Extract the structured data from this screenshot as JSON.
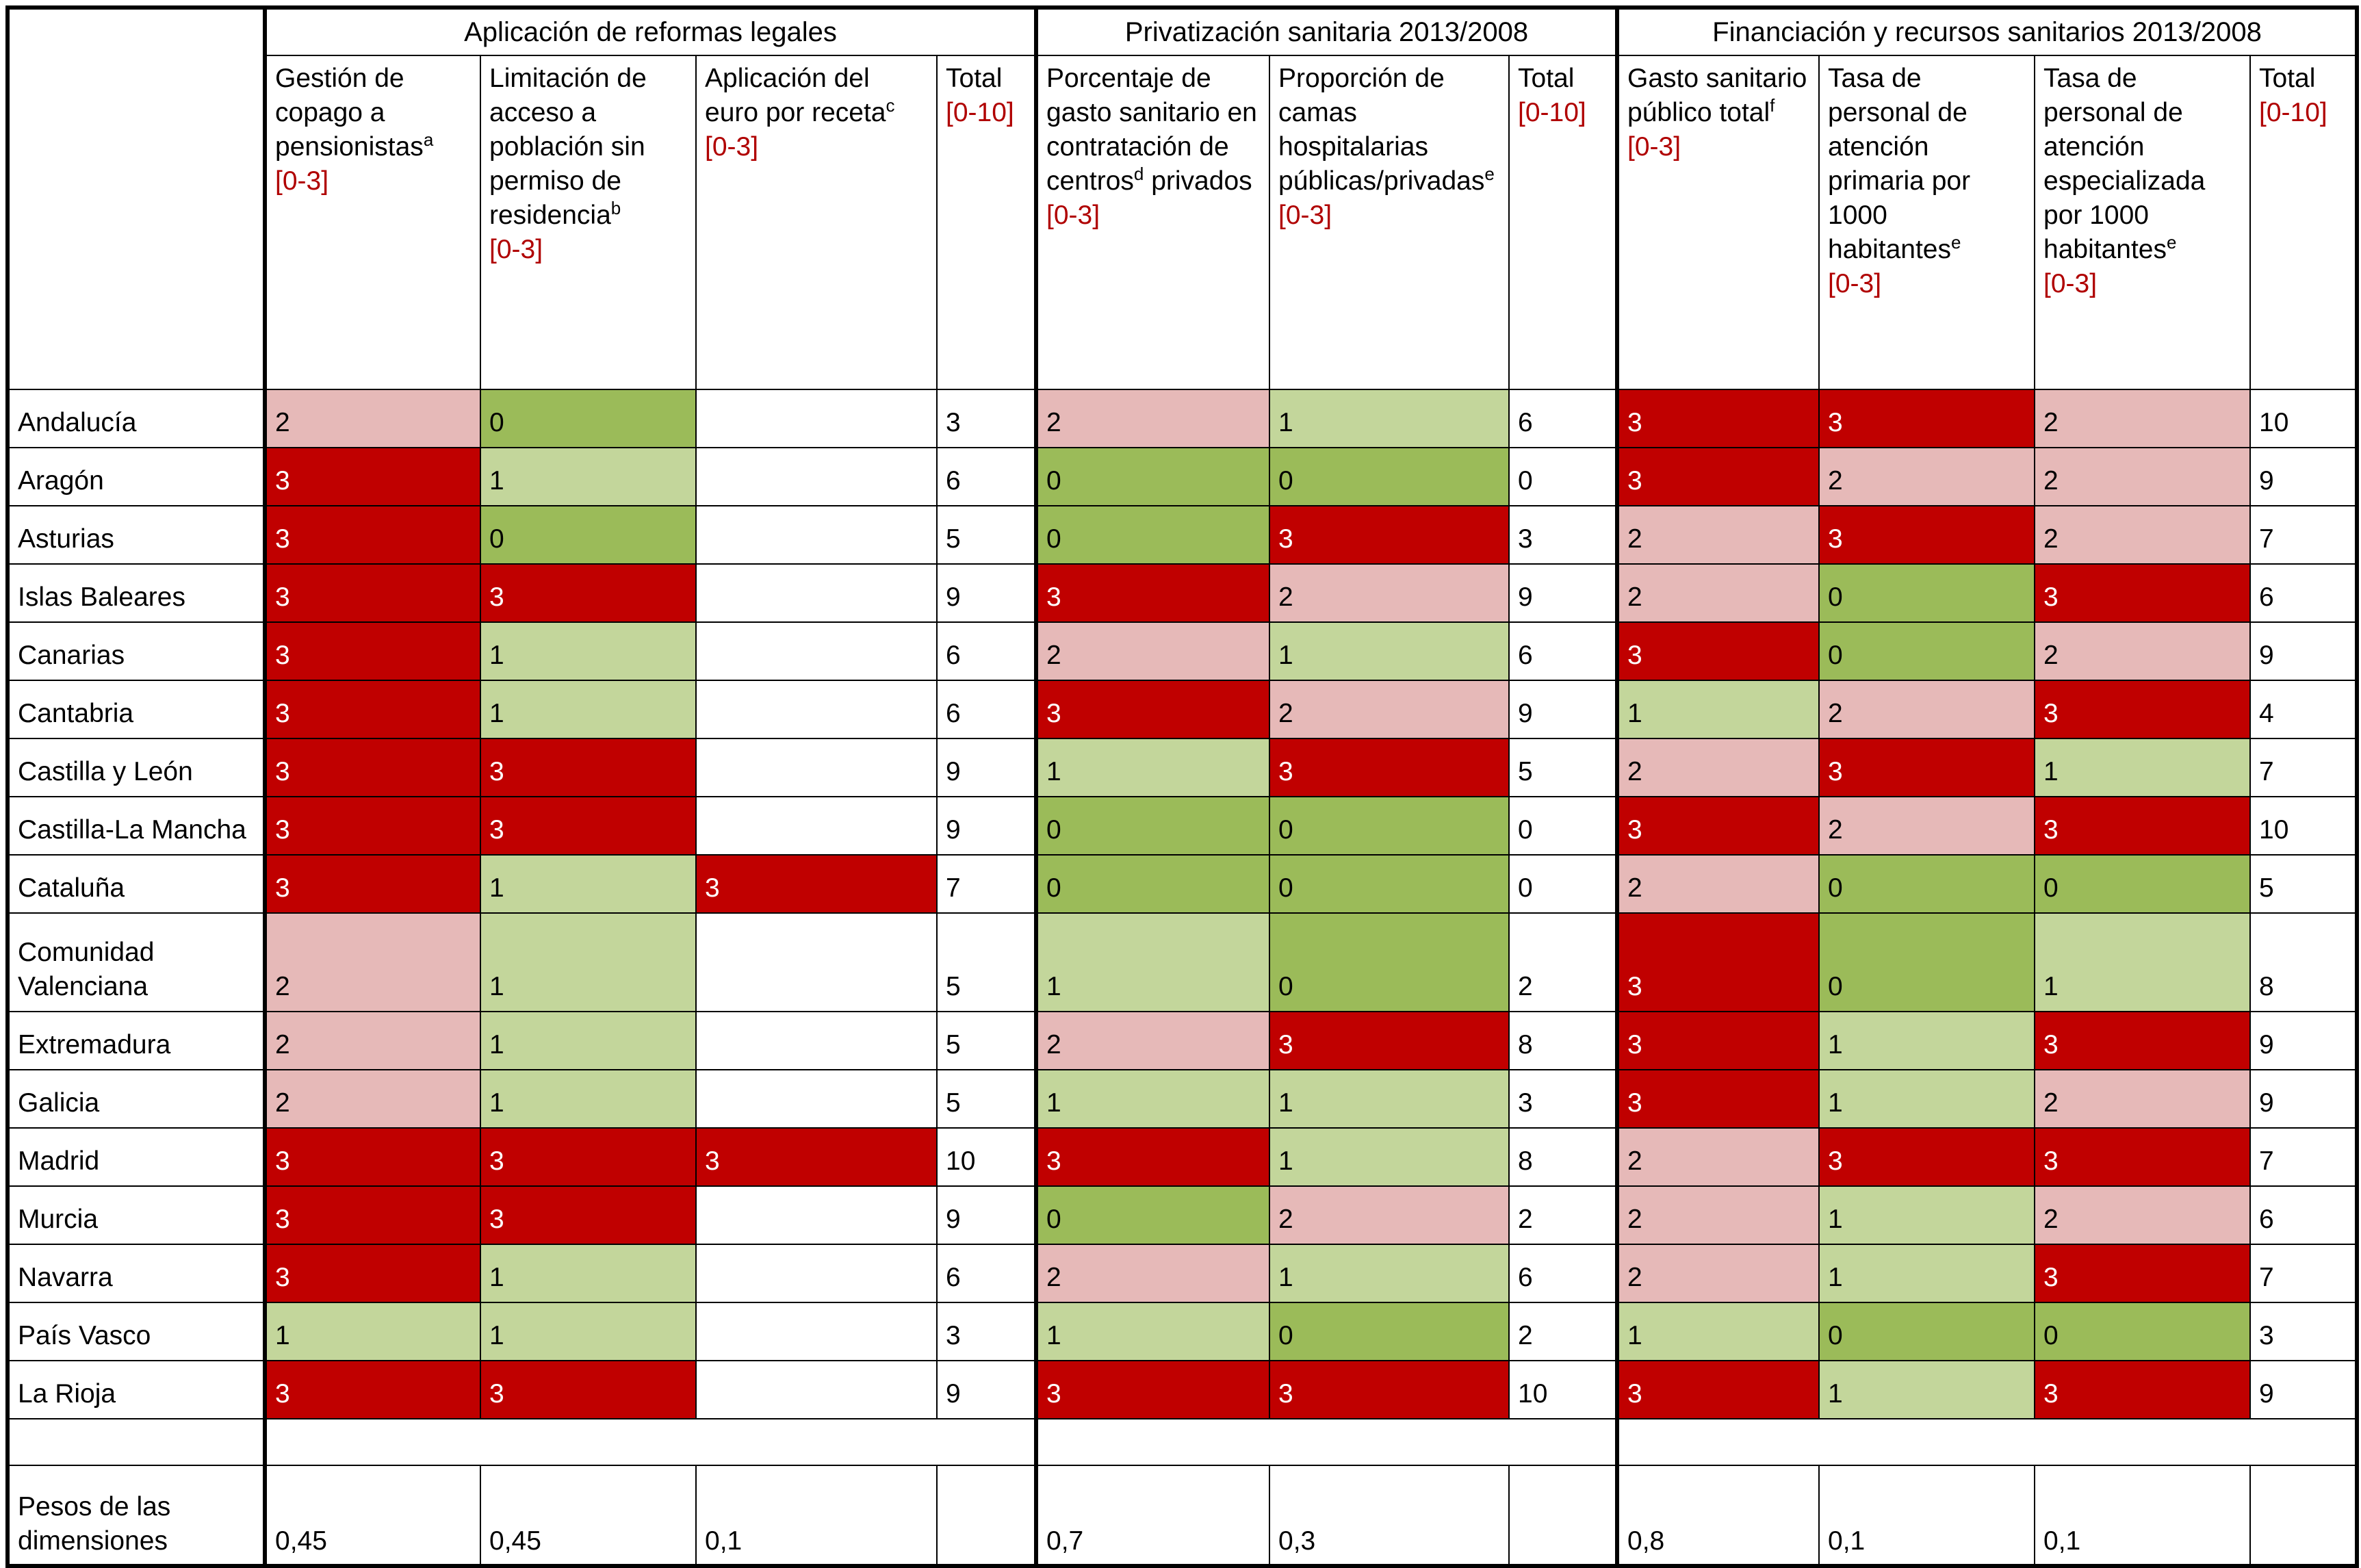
{
  "table": {
    "groups": [
      {
        "title": "Aplicación de reformas legales",
        "columns": [
          {
            "label": "Gestión de copago a pensionistas",
            "note": "a",
            "range": "[0-3]",
            "shaded": true
          },
          {
            "label": "Limitación de acceso a población sin permiso de residencia",
            "note": "b",
            "range": "[0-3]",
            "shaded": true
          },
          {
            "label": "Aplicación del euro por receta",
            "note": "c",
            "range": "[0-3]",
            "shaded": true
          },
          {
            "label": "Total",
            "range": "[0-10]",
            "shaded": false
          }
        ]
      },
      {
        "title": "Privatización sanitaria 2013/2008",
        "columns": [
          {
            "label": "Porcentaje de gasto sanitario en contratación de centros",
            "note": "d",
            "label_cont": "privados",
            "range": "[0-3]",
            "shaded": true
          },
          {
            "label": "Proporción de camas hospitalarias públicas/privadas",
            "note": "e",
            "range": "[0-3]",
            "shaded": true
          },
          {
            "label": "Total",
            "range": "[0-10]",
            "shaded": false
          }
        ]
      },
      {
        "title": "Financiación y recursos sanitarios 2013/2008",
        "columns": [
          {
            "label": "Gasto sanitario público total",
            "note": "f",
            "range": "[0-3]",
            "shaded": true
          },
          {
            "label": "Tasa de personal de atención primaria por 1000 habitantes",
            "note": "e",
            "range": "[0-3]",
            "shaded": true
          },
          {
            "label": "Tasa de personal de atención especializada por 1000 habitantes",
            "note": "e",
            "range": "[0-3]",
            "shaded": true
          },
          {
            "label": "Total",
            "range": "[0-10]",
            "shaded": false
          }
        ]
      }
    ],
    "rows": [
      {
        "region": "Andalucía",
        "values": [
          2,
          0,
          null,
          3,
          2,
          1,
          6,
          3,
          3,
          2,
          10
        ]
      },
      {
        "region": "Aragón",
        "values": [
          3,
          1,
          null,
          6,
          0,
          0,
          0,
          3,
          2,
          2,
          9
        ]
      },
      {
        "region": "Asturias",
        "values": [
          3,
          0,
          null,
          5,
          0,
          3,
          3,
          2,
          3,
          2,
          7
        ]
      },
      {
        "region": "Islas Baleares",
        "values": [
          3,
          3,
          null,
          9,
          3,
          2,
          9,
          2,
          0,
          3,
          6
        ]
      },
      {
        "region": "Canarias",
        "values": [
          3,
          1,
          null,
          6,
          2,
          1,
          6,
          3,
          0,
          2,
          9
        ]
      },
      {
        "region": "Cantabria",
        "values": [
          3,
          1,
          null,
          6,
          3,
          2,
          9,
          1,
          2,
          3,
          4
        ]
      },
      {
        "region": "Castilla y León",
        "values": [
          3,
          3,
          null,
          9,
          1,
          3,
          5,
          2,
          3,
          1,
          7
        ]
      },
      {
        "region": "Castilla-La Mancha",
        "values": [
          3,
          3,
          null,
          9,
          0,
          0,
          0,
          3,
          2,
          3,
          10
        ]
      },
      {
        "region": "Cataluña",
        "values": [
          3,
          1,
          3,
          7,
          0,
          0,
          0,
          2,
          0,
          0,
          5
        ]
      },
      {
        "region": "Comunidad Valenciana",
        "values": [
          2,
          1,
          null,
          5,
          1,
          0,
          2,
          3,
          0,
          1,
          8
        ]
      },
      {
        "region": "Extremadura",
        "values": [
          2,
          1,
          null,
          5,
          2,
          3,
          8,
          3,
          1,
          3,
          9
        ]
      },
      {
        "region": "Galicia",
        "values": [
          2,
          1,
          null,
          5,
          1,
          1,
          3,
          3,
          1,
          2,
          9
        ]
      },
      {
        "region": "Madrid",
        "values": [
          3,
          3,
          3,
          10,
          3,
          1,
          8,
          2,
          3,
          3,
          7
        ]
      },
      {
        "region": "Murcia",
        "values": [
          3,
          3,
          null,
          9,
          0,
          2,
          2,
          2,
          1,
          2,
          6
        ]
      },
      {
        "region": "Navarra",
        "values": [
          3,
          1,
          null,
          6,
          2,
          1,
          6,
          2,
          1,
          3,
          7
        ]
      },
      {
        "region": "País Vasco",
        "values": [
          1,
          1,
          null,
          3,
          1,
          0,
          2,
          1,
          0,
          0,
          3
        ]
      },
      {
        "region": "La Rioja",
        "values": [
          3,
          3,
          null,
          9,
          3,
          3,
          10,
          3,
          1,
          3,
          9
        ]
      }
    ],
    "weights": {
      "label": "Pesos de las dimensiones",
      "values": [
        "0,45",
        "0,45",
        "0,1",
        null,
        "0,7",
        "0,3",
        null,
        "0,8",
        "0,1",
        "0,1",
        null
      ]
    }
  },
  "cell_colors": [
    "#9bbb59",
    "#c3d69b",
    "#e6b9b8",
    "#c00000"
  ],
  "cell_text_colors": [
    "#000000",
    "#000000",
    "#000000",
    "#ffffff"
  ]
}
